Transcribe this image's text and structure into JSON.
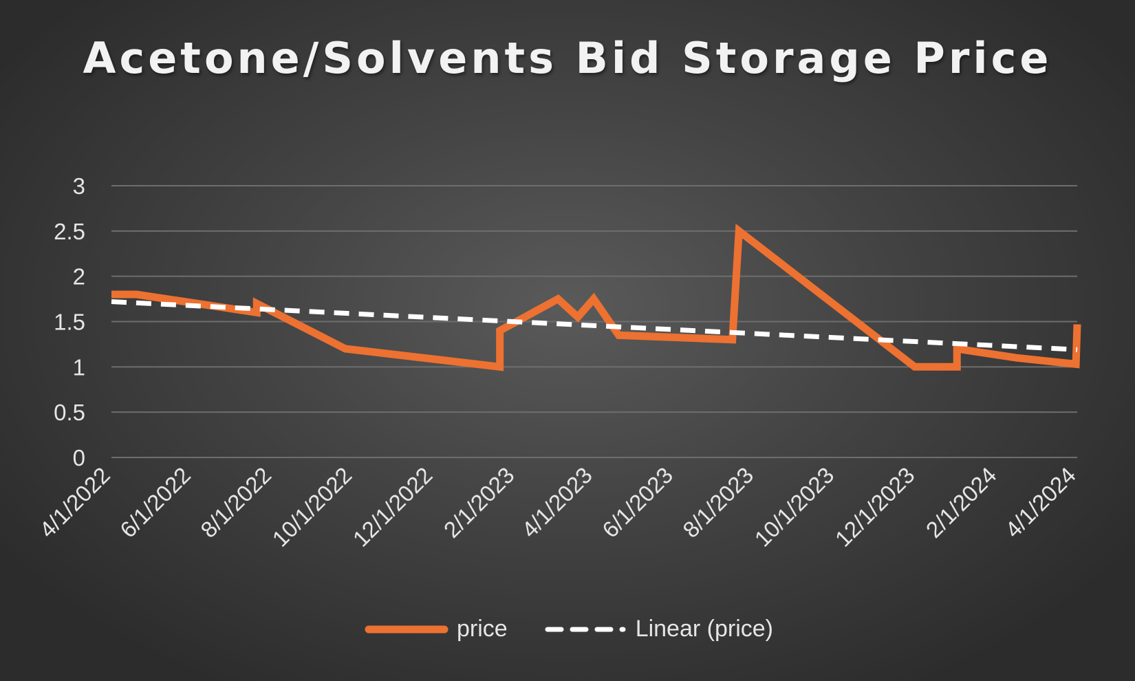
{
  "chart_data": {
    "type": "line",
    "title": "Acetone/Solvents Bid Storage Price",
    "xlabel": "",
    "ylabel": "",
    "x_tick_labels": [
      "4/1/2022",
      "6/1/2022",
      "8/1/2022",
      "10/1/2022",
      "12/1/2022",
      "2/1/2023",
      "4/1/2023",
      "6/1/2023",
      "8/1/2023",
      "10/1/2023",
      "12/1/2023",
      "2/1/2024",
      "4/1/2024"
    ],
    "xlim": [
      "4/1/2022",
      "4/1/2024"
    ],
    "y_tick_labels": [
      "0",
      "0.5",
      "1",
      "1.5",
      "2",
      "2.5",
      "3"
    ],
    "ylim": [
      0,
      3
    ],
    "grid": "horizontal",
    "legend_position": "bottom",
    "series": [
      {
        "name": "price",
        "color": "#ED7131",
        "style": "solid",
        "points": [
          {
            "x": "4/1/2022",
            "y": 1.8
          },
          {
            "x": "4/20/2022",
            "y": 1.8
          },
          {
            "x": "7/20/2022",
            "y": 1.6
          },
          {
            "x": "7/20/2022",
            "y": 1.7
          },
          {
            "x": "9/25/2022",
            "y": 1.2
          },
          {
            "x": "1/20/2023",
            "y": 1.0
          },
          {
            "x": "1/20/2023",
            "y": 1.4
          },
          {
            "x": "3/5/2023",
            "y": 1.75
          },
          {
            "x": "3/20/2023",
            "y": 1.55
          },
          {
            "x": "4/1/2023",
            "y": 1.75
          },
          {
            "x": "4/20/2023",
            "y": 1.35
          },
          {
            "x": "7/15/2023",
            "y": 1.3
          },
          {
            "x": "7/20/2023",
            "y": 2.5
          },
          {
            "x": "11/30/2023",
            "y": 1.0
          },
          {
            "x": "1/1/2024",
            "y": 1.0
          },
          {
            "x": "1/1/2024",
            "y": 1.2
          },
          {
            "x": "2/15/2024",
            "y": 1.1
          },
          {
            "x": "3/31/2024",
            "y": 1.03
          },
          {
            "x": "4/1/2024",
            "y": 1.47
          }
        ]
      },
      {
        "name": "Linear (price)",
        "color": "#FFFFFF",
        "style": "dashed",
        "trendline": "linear",
        "points": [
          {
            "x": "4/1/2022",
            "y": 1.72
          },
          {
            "x": "4/1/2024",
            "y": 1.19
          }
        ]
      }
    ]
  }
}
